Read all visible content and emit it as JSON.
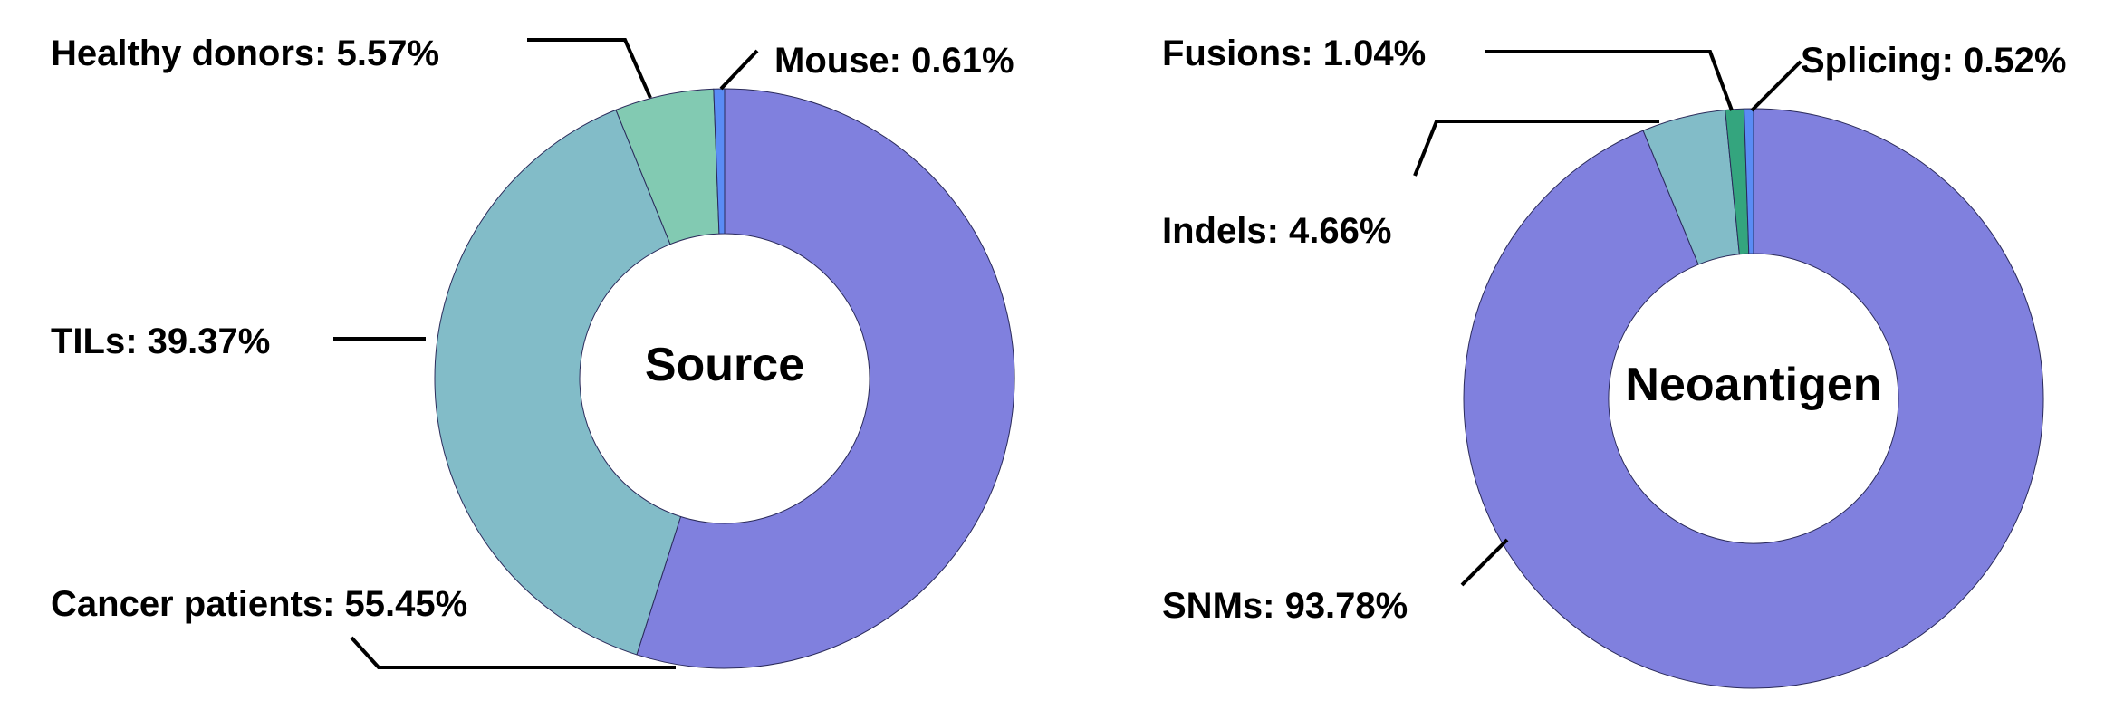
{
  "chart_data": [
    {
      "type": "pie",
      "title": "",
      "center_label": "Source",
      "slices": [
        {
          "name": "Cancer patients",
          "value": 55.45,
          "label": "Cancer patients: 55.45%",
          "color": "#8080DE"
        },
        {
          "name": "TILs",
          "value": 39.37,
          "label": "TILs: 39.37%",
          "color": "#82BCC8"
        },
        {
          "name": "Healthy donors",
          "value": 5.57,
          "label": "Healthy donors: 5.57%",
          "color": "#82CAB2"
        },
        {
          "name": "Mouse",
          "value": 0.61,
          "label": "Mouse: 0.61%",
          "color": "#5A8CF5"
        }
      ]
    },
    {
      "type": "pie",
      "title": "",
      "center_label": "Neoantigen",
      "slices": [
        {
          "name": "SNMs",
          "value": 93.78,
          "label": "SNMs: 93.78%",
          "color": "#8080DE"
        },
        {
          "name": "Indels",
          "value": 4.66,
          "label": "Indels: 4.66%",
          "color": "#82BCC8"
        },
        {
          "name": "Fusions",
          "value": 1.04,
          "label": "Fusions: 1.04%",
          "color": "#34A57E"
        },
        {
          "name": "Splicing",
          "value": 0.52,
          "label": "Splicing: 0.52%",
          "color": "#5A8CF5"
        }
      ]
    }
  ]
}
